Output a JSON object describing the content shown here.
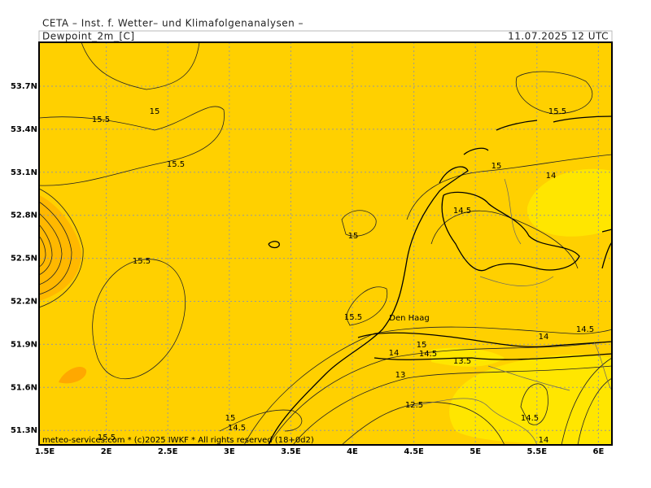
{
  "header": {
    "institute": "CETA – Inst. f. Wetter– und Klimafolgenanalysen –",
    "field": "Dewpoint_2m_[C]",
    "valid_time": "11.07.2025 12 UTC"
  },
  "axes": {
    "x_labels": [
      "1.5E",
      "2E",
      "2.5E",
      "3E",
      "3.5E",
      "4E",
      "4.5E",
      "5E",
      "5.5E",
      "6E"
    ],
    "y_labels": [
      "53.7N",
      "53.4N",
      "53.1N",
      "52.8N",
      "52.5N",
      "52.2N",
      "51.9N",
      "51.6N",
      "51.3N"
    ]
  },
  "contour_labels": [
    "15",
    "15.5",
    "15.5",
    "15.5",
    "15",
    "14",
    "14.5",
    "15",
    "15.5",
    "15.5",
    "14",
    "14.5",
    "15",
    "14",
    "14.5",
    "13.5",
    "13",
    "12.5",
    "15",
    "14.5",
    "14.5",
    "14",
    "15.5"
  ],
  "places": [
    "Den Haag"
  ],
  "footer": "meteo-services.com * (c)2025 IWKF * All rights reserved (18+0d2)"
}
